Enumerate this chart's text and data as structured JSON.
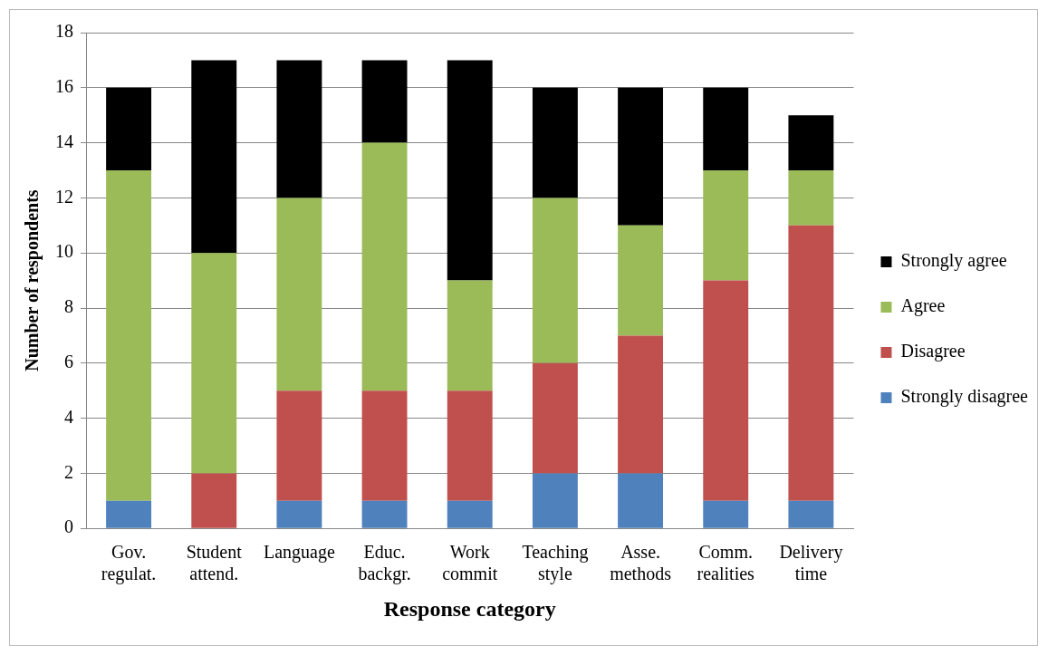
{
  "chart_data": {
    "type": "bar",
    "stacked": true,
    "xlabel": "Response category",
    "ylabel": "Number of respondents",
    "categories": [
      "Gov. regulat.",
      "Student attend.",
      "Language",
      "Educ. backgr.",
      "Work commit",
      "Teaching style",
      "Asse. methods",
      "Comm. realities",
      "Delivery time"
    ],
    "series": [
      {
        "name": "Strongly disagree",
        "color": "#4f81bd",
        "values": [
          1,
          0,
          1,
          1,
          1,
          2,
          2,
          1,
          1
        ]
      },
      {
        "name": "Disagree",
        "color": "#c0504d",
        "values": [
          0,
          2,
          4,
          4,
          4,
          4,
          5,
          8,
          10
        ]
      },
      {
        "name": "Agree",
        "color": "#9bbb59",
        "values": [
          12,
          8,
          7,
          9,
          4,
          6,
          4,
          4,
          2
        ]
      },
      {
        "name": "Strongly agree",
        "color": "#000000",
        "values": [
          3,
          7,
          5,
          3,
          8,
          4,
          5,
          3,
          2
        ]
      }
    ],
    "ylim": [
      0,
      18
    ],
    "yticks": [
      0,
      2,
      4,
      6,
      8,
      10,
      12,
      14,
      16,
      18
    ],
    "grid": "y",
    "legend": "right"
  }
}
